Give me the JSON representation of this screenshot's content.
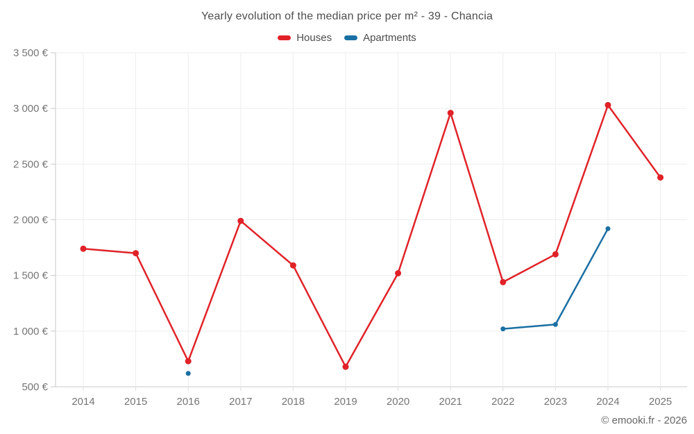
{
  "header": {
    "title": "Yearly evolution of the median price per m² - 39 - Chancia"
  },
  "legend": {
    "items": [
      {
        "label": "Houses",
        "color": "#e02228"
      },
      {
        "label": "Apartments",
        "color": "#1a6fa3"
      }
    ]
  },
  "footer": {
    "attribution": "© emooki.fr - 2026"
  },
  "chart_data": {
    "type": "line",
    "title": "Yearly evolution of the median price per m² - 39 - Chancia",
    "xlabel": "",
    "ylabel": "",
    "x": [
      "2014",
      "2015",
      "2016",
      "2017",
      "2018",
      "2019",
      "2020",
      "2021",
      "2022",
      "2023",
      "2024",
      "2025"
    ],
    "series": [
      {
        "name": "Houses",
        "color": "#e02228",
        "marker_radius": 4.5,
        "values": [
          1740,
          1700,
          730,
          1990,
          1590,
          680,
          1520,
          2960,
          1440,
          1690,
          3030,
          2380
        ]
      },
      {
        "name": "Apartments",
        "color": "#1a6fa3",
        "marker_radius": 3.5,
        "values": [
          null,
          null,
          620,
          null,
          null,
          null,
          null,
          null,
          1020,
          1060,
          1920,
          null
        ]
      }
    ],
    "ylim": [
      500,
      3500
    ],
    "yticks": [
      {
        "value": 500,
        "label": "500 €"
      },
      {
        "value": 1000,
        "label": "1 000 €"
      },
      {
        "value": 1500,
        "label": "1 500 €"
      },
      {
        "value": 2000,
        "label": "2 000 €"
      },
      {
        "value": 2500,
        "label": "2 500 €"
      },
      {
        "value": 3000,
        "label": "3 000 €"
      },
      {
        "value": 3500,
        "label": "3 500 €"
      }
    ],
    "grid": true,
    "legend_position": "top",
    "currency_unit": "€"
  }
}
